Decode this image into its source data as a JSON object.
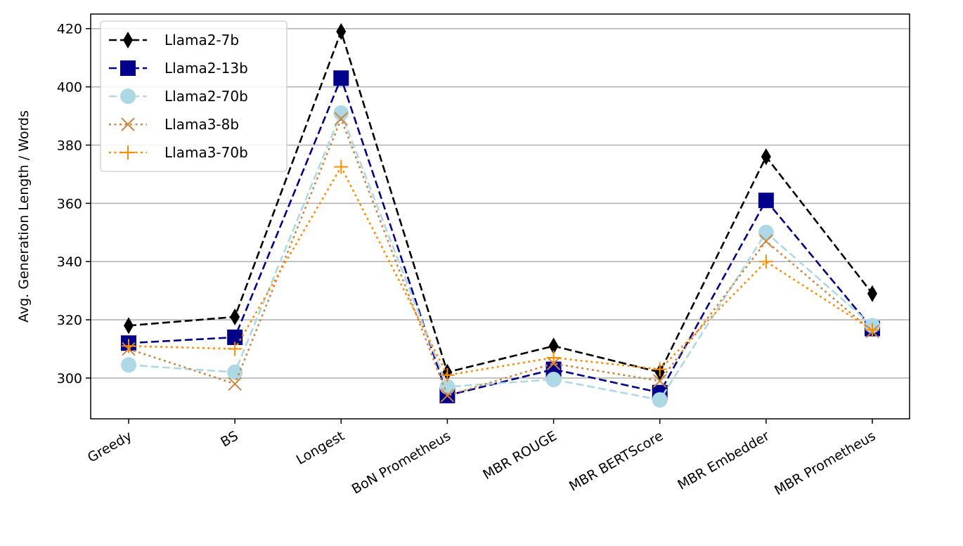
{
  "chart_data": {
    "type": "line",
    "title": "",
    "xlabel": "",
    "ylabel": "Avg. Generation Length / Words",
    "ylim": [
      286,
      425
    ],
    "yticks": [
      300,
      320,
      340,
      360,
      380,
      400,
      420
    ],
    "grid": "horizontal",
    "legend_position": "top-left",
    "categories": [
      "Greedy",
      "BS",
      "Longest",
      "BoN Prometheus",
      "MBR ROUGE",
      "MBR BERTScore",
      "MBR Embedder",
      "MBR Prometheus"
    ],
    "series": [
      {
        "name": "Llama2-7b",
        "color": "#000000",
        "dash": "dashed",
        "marker": "thin_diamond",
        "values": [
          318,
          321,
          419,
          302,
          311,
          302,
          376,
          329
        ]
      },
      {
        "name": "Llama2-13b",
        "color": "#00008b",
        "dash": "dashed",
        "marker": "square",
        "values": [
          312,
          314,
          403,
          294,
          303,
          295,
          361,
          317
        ]
      },
      {
        "name": "Llama2-70b",
        "color": "#add8e6",
        "dash": "dashed",
        "marker": "circle",
        "values": [
          304.5,
          302,
          391,
          297,
          299.5,
          292.5,
          350,
          318
        ]
      },
      {
        "name": "Llama3-8b",
        "color": "#cd853f",
        "dash": "dotted",
        "marker": "x",
        "values": [
          310,
          298,
          389,
          294,
          305,
          299,
          347,
          316
        ]
      },
      {
        "name": "Llama3-70b",
        "color": "#ff8c00",
        "dash": "dotted",
        "marker": "plus",
        "values": [
          311,
          310,
          372.5,
          301,
          307,
          303,
          340,
          316.5
        ]
      }
    ]
  }
}
